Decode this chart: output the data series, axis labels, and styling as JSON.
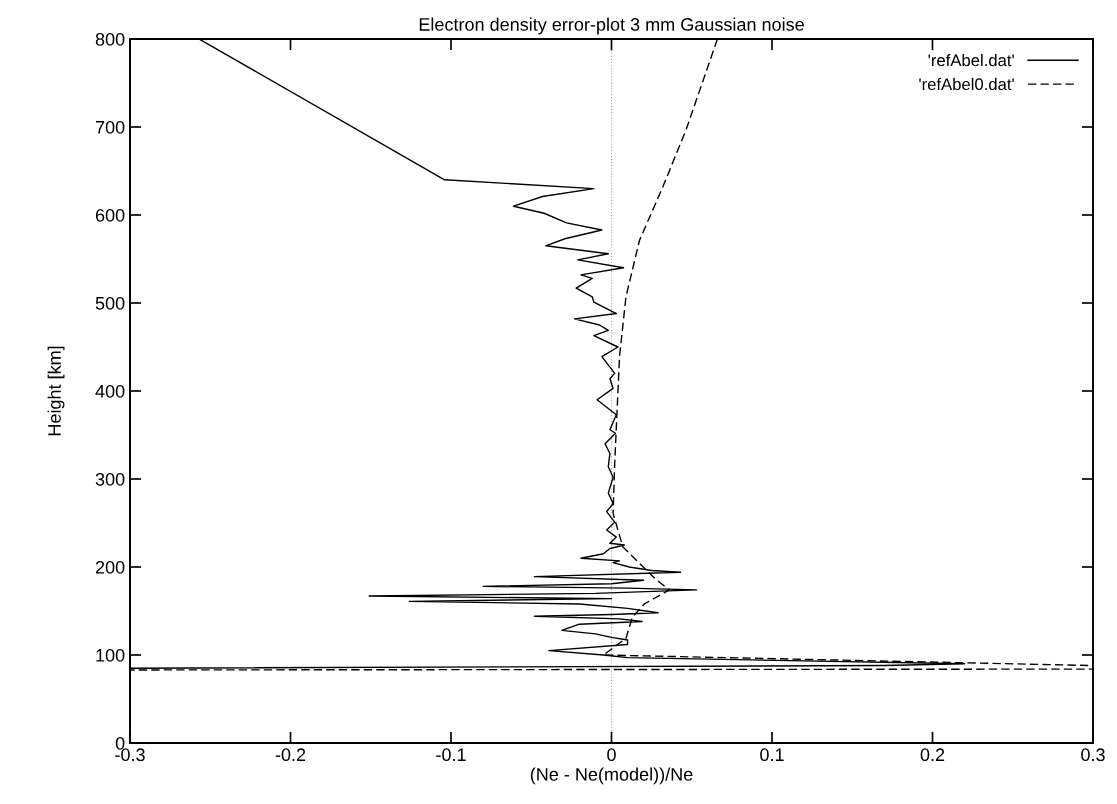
{
  "chart_data": {
    "type": "line",
    "title": "Electron density error-plot 3 mm Gaussian noise",
    "xlabel": "(Ne - Ne(model))/Ne",
    "ylabel": "Height [km]",
    "xlim": [
      -0.3,
      0.3
    ],
    "xticks": [
      {
        "value": -0.3,
        "label": "-0.3"
      },
      {
        "value": -0.2,
        "label": "-0.2"
      },
      {
        "value": -0.1,
        "label": "-0.1"
      },
      0,
      0.1,
      0.2,
      0.3
    ],
    "ylim": [
      0,
      800
    ],
    "yticks": [
      0,
      100,
      200,
      300,
      400,
      500,
      600,
      700,
      800
    ],
    "grid": false,
    "legend": "top right",
    "marker": "none",
    "ref_lines": [
      {
        "axis": "x",
        "value": 0,
        "color": "#aaaaaa",
        "line_style": "dotted"
      }
    ],
    "series": [
      {
        "name": "'refAbel.dat'",
        "color": "#000000",
        "line_style": "solid",
        "x": [
          -0.257,
          -0.104,
          -0.011,
          -0.043,
          -0.061,
          -0.042,
          -0.028,
          -0.006,
          -0.029,
          -0.041,
          -0.002,
          -0.021,
          0.0075,
          -0.019,
          -0.012,
          -0.022,
          -0.012,
          -0.011,
          0.003,
          -0.023,
          -0.0075,
          -0.002,
          -0.011,
          0.004,
          -0.006,
          0.002,
          -0.001,
          0.001,
          -0.009,
          0.003,
          -0.001,
          0.0025,
          -0.004,
          -0.001,
          -0.002,
          0.001,
          -0.002,
          0.001,
          -0.003,
          0.002,
          -0.003,
          0.003,
          -0.001,
          0.008,
          -0.001,
          -0.005,
          -0.019,
          0.005,
          0.001,
          0.011,
          0.025,
          0.043,
          -0.048,
          0.02,
          0.0,
          -0.08,
          0.01,
          0.053,
          -0.01,
          -0.151,
          0.0,
          -0.126,
          -0.02,
          0.01,
          0.029,
          0.0,
          -0.048,
          0.005,
          0.019,
          -0.02,
          -0.031,
          -0.01,
          0.0,
          0.01,
          0.01,
          -0.039,
          -0.005,
          0.01,
          0.22,
          0.17,
          -0.3
        ],
        "values": [
          800,
          640,
          630,
          621,
          610,
          602,
          591,
          583,
          573,
          565,
          556,
          549,
          540,
          532,
          528,
          517,
          507,
          501,
          488,
          482,
          475,
          469,
          463,
          450,
          439,
          420,
          414,
          403,
          390,
          373,
          356,
          352,
          340,
          329,
          314,
          302,
          284,
          272,
          263,
          251,
          242,
          234,
          227,
          225,
          221,
          215,
          210,
          207,
          205,
          200,
          196,
          194,
          189,
          185,
          181,
          178,
          176,
          174,
          170,
          167,
          164,
          161,
          158,
          153,
          148,
          146,
          144,
          141,
          138,
          135,
          128,
          124,
          120,
          117,
          112,
          105,
          100,
          97,
          90,
          88,
          85
        ]
      },
      {
        "name": "'refAbel0.dat'",
        "color": "#000000",
        "line_style": "dashed",
        "x": [
          0.066,
          0.0465,
          0.032,
          0.0174,
          0.009,
          0.005,
          0.002,
          0.001,
          0.007,
          0.027,
          0.036,
          0.0205,
          0.013,
          0.009,
          -0.005,
          0.3,
          0.3,
          -0.3
        ],
        "values": [
          800,
          697,
          632,
          571,
          507,
          439,
          318,
          261,
          223,
          187,
          174,
          158,
          143,
          119,
          100,
          88,
          84,
          83
        ]
      }
    ]
  }
}
